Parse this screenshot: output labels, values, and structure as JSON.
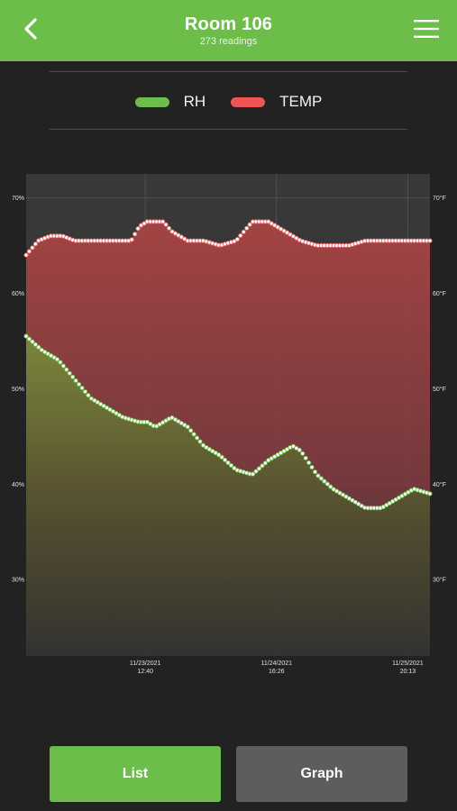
{
  "header": {
    "title": "Room 106",
    "subtitle": "273 readings",
    "accent_color": "#6cbd4a",
    "back_icon": "chevron-left-icon",
    "menu_icon": "hamburger-menu-icon"
  },
  "legend": [
    {
      "label": "RH",
      "color": "#6cbd4a"
    },
    {
      "label": "TEMP",
      "color": "#ee5555"
    }
  ],
  "buttons": {
    "list_label": "List",
    "graph_label": "Graph"
  },
  "chart_data": {
    "type": "area",
    "series": [
      {
        "name": "RH",
        "color": "#6cbd4a",
        "axis": "left",
        "points": [
          [
            0,
            55.5
          ],
          [
            4,
            54
          ],
          [
            8,
            53
          ],
          [
            12,
            51
          ],
          [
            16,
            49
          ],
          [
            20,
            48
          ],
          [
            24,
            47
          ],
          [
            28,
            46.5
          ],
          [
            30,
            46.5
          ],
          [
            32,
            46
          ],
          [
            34,
            46.5
          ],
          [
            36,
            47
          ],
          [
            38,
            46.5
          ],
          [
            40,
            46
          ],
          [
            44,
            44
          ],
          [
            48,
            43
          ],
          [
            52,
            41.5
          ],
          [
            56,
            41
          ],
          [
            60,
            42.5
          ],
          [
            64,
            43.5
          ],
          [
            66,
            44
          ],
          [
            68,
            43.5
          ],
          [
            72,
            41
          ],
          [
            76,
            39.5
          ],
          [
            80,
            38.5
          ],
          [
            84,
            37.5
          ],
          [
            88,
            37.5
          ],
          [
            92,
            38.5
          ],
          [
            96,
            39.5
          ],
          [
            100,
            39
          ]
        ]
      },
      {
        "name": "TEMP",
        "color": "#ee5555",
        "axis": "right",
        "points": [
          [
            0,
            64
          ],
          [
            3,
            65.5
          ],
          [
            6,
            66
          ],
          [
            9,
            66
          ],
          [
            12,
            65.5
          ],
          [
            16,
            65.5
          ],
          [
            20,
            65.5
          ],
          [
            24,
            65.5
          ],
          [
            26,
            65.5
          ],
          [
            28,
            67
          ],
          [
            30,
            67.5
          ],
          [
            32,
            67.5
          ],
          [
            34,
            67.5
          ],
          [
            36,
            66.5
          ],
          [
            40,
            65.5
          ],
          [
            44,
            65.5
          ],
          [
            48,
            65
          ],
          [
            52,
            65.5
          ],
          [
            56,
            67.5
          ],
          [
            60,
            67.5
          ],
          [
            64,
            66.5
          ],
          [
            68,
            65.5
          ],
          [
            72,
            65
          ],
          [
            76,
            65
          ],
          [
            80,
            65
          ],
          [
            84,
            65.5
          ],
          [
            88,
            65.5
          ],
          [
            92,
            65.5
          ],
          [
            96,
            65.5
          ],
          [
            100,
            65.5
          ]
        ]
      }
    ],
    "left_axis": {
      "ticks": [
        "70%",
        "60%",
        "50%",
        "40%",
        "30%"
      ],
      "range": [
        22,
        72.5
      ]
    },
    "right_axis": {
      "ticks": [
        "70°F",
        "60°F",
        "50°F",
        "40°F",
        "30°F"
      ],
      "range": [
        22,
        72.5
      ]
    },
    "x_ticks": [
      {
        "pos": 29.5,
        "date": "11/23/2021",
        "time": "12:40"
      },
      {
        "pos": 62.0,
        "date": "11/24/2021",
        "time": "16:26"
      },
      {
        "pos": 94.5,
        "date": "11/25/2021",
        "time": "20:13"
      }
    ],
    "grid": true,
    "legend_position": "top-center"
  }
}
